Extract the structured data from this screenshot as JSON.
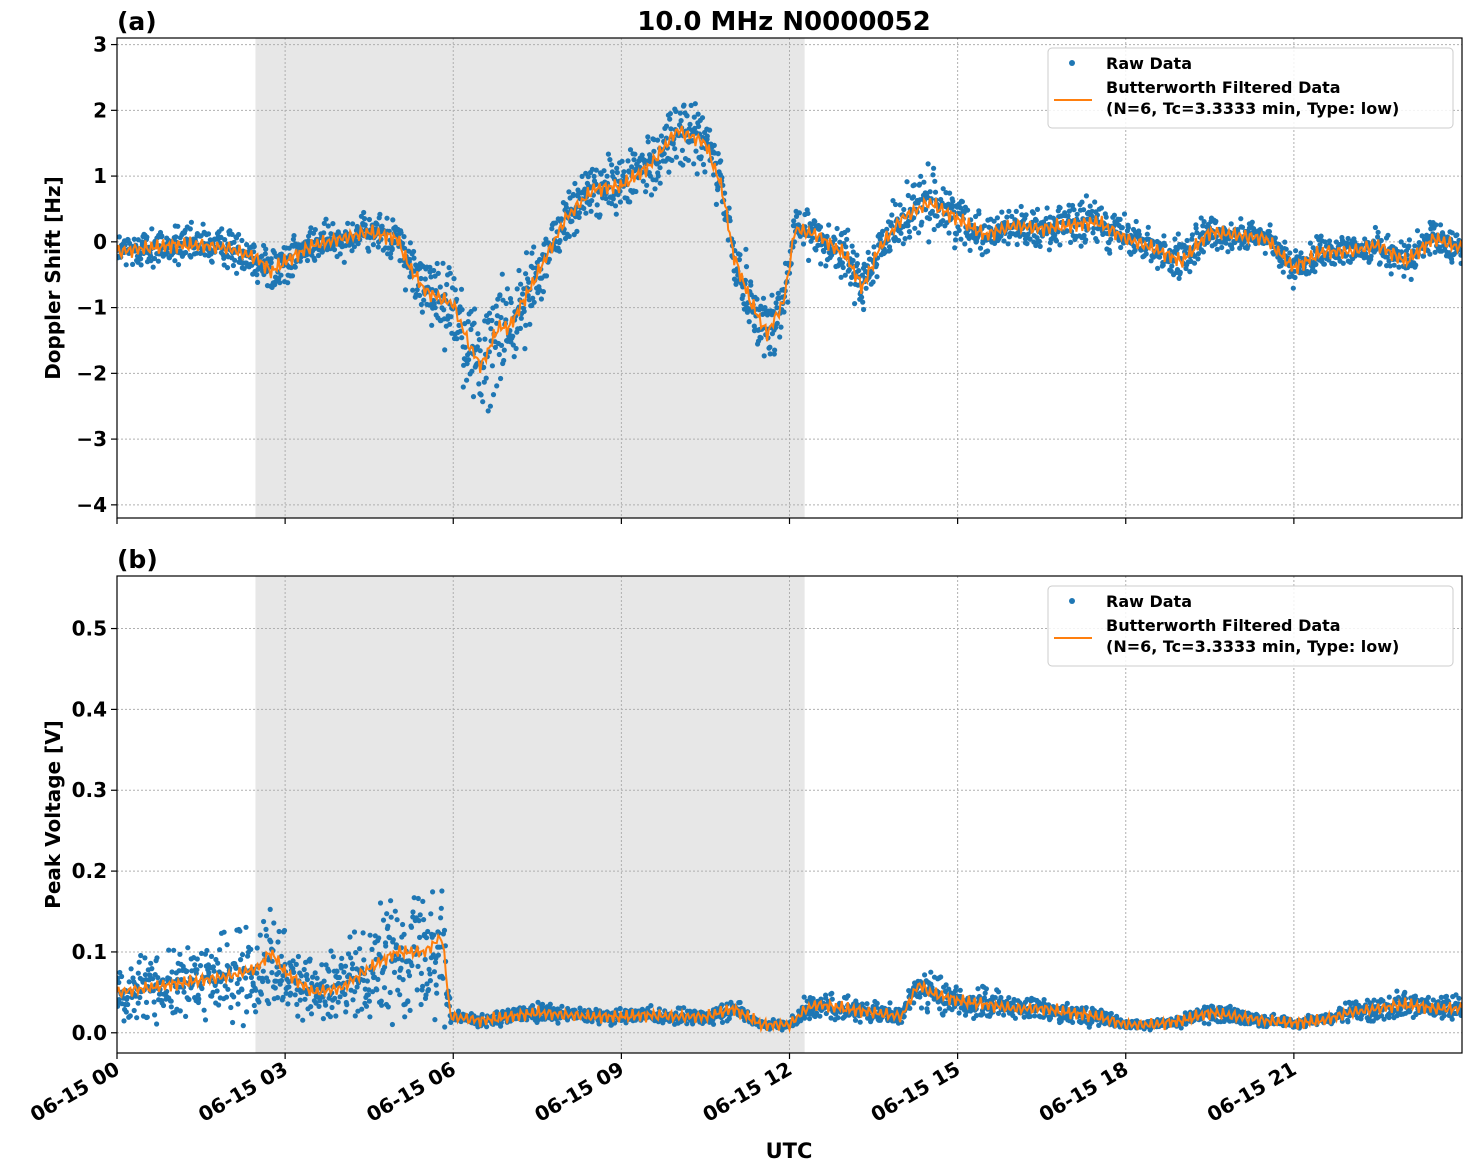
{
  "figure": {
    "title": "10.0 MHz N0000052",
    "xlabel": "UTC"
  },
  "chart_data": [
    {
      "type": "scatter",
      "panel_label": "(a)",
      "title": "10.0 MHz N0000052",
      "xlabel": "",
      "ylabel": "Doppler Shift [Hz]",
      "xlim": [
        0,
        24
      ],
      "ylim": [
        -4.2,
        3.1
      ],
      "yticks": [
        {
          "value": -4,
          "label": "−4"
        },
        {
          "value": -3,
          "label": "−3"
        },
        {
          "value": -2,
          "label": "−2"
        },
        {
          "value": -1,
          "label": "−1"
        },
        {
          "value": 0,
          "label": "0"
        },
        {
          "value": 1,
          "label": "1"
        },
        {
          "value": 2,
          "label": "2"
        },
        {
          "value": 3,
          "label": "3"
        }
      ],
      "grid": true,
      "legend_position": "top-right",
      "shaded_span_hours": [
        2.47,
        12.27
      ],
      "series": [
        {
          "name": "Raw Data",
          "kind": "scatter",
          "color": "#1f77b4",
          "x": [
            0,
            0.5,
            1,
            1.5,
            2,
            2.5,
            2.75,
            3,
            3.5,
            4,
            4.5,
            5,
            5.2,
            5.5,
            6,
            6.3,
            6.5,
            6.8,
            7,
            7.5,
            8,
            8.5,
            9,
            9.5,
            10,
            10.5,
            10.8,
            11,
            11.3,
            11.6,
            11.9,
            12.1,
            12.5,
            13,
            13.3,
            13.6,
            14,
            14.5,
            15,
            15.5,
            16,
            16.5,
            17,
            17.5,
            18,
            18.5,
            19,
            19.5,
            20,
            20.5,
            21,
            21.5,
            22,
            22.5,
            23,
            23.5,
            24
          ],
          "y": [
            -0.15,
            -0.1,
            -0.05,
            -0.05,
            -0.1,
            -0.25,
            -0.45,
            -0.3,
            -0.05,
            0.05,
            0.15,
            0.05,
            -0.35,
            -0.75,
            -0.95,
            -1.6,
            -1.9,
            -1.3,
            -1.3,
            -0.5,
            0.35,
            0.8,
            0.85,
            1.15,
            1.7,
            1.5,
            0.8,
            -0.2,
            -0.9,
            -1.4,
            -0.9,
            0.2,
            0.1,
            -0.2,
            -0.7,
            -0.1,
            0.35,
            0.6,
            0.35,
            0.1,
            0.25,
            0.2,
            0.25,
            0.3,
            0.05,
            -0.1,
            -0.3,
            0.15,
            0.1,
            0.05,
            -0.4,
            -0.15,
            -0.15,
            -0.05,
            -0.3,
            0.05,
            -0.1
          ],
          "spread": [
            0.3,
            0.3,
            0.3,
            0.3,
            0.3,
            0.35,
            0.45,
            0.4,
            0.3,
            0.3,
            0.3,
            0.35,
            0.45,
            0.55,
            0.7,
            0.9,
            1.0,
            0.9,
            0.75,
            0.55,
            0.45,
            0.45,
            0.45,
            0.5,
            0.55,
            0.55,
            0.5,
            0.5,
            0.55,
            0.55,
            0.5,
            0.4,
            0.35,
            0.4,
            0.45,
            0.4,
            0.45,
            0.5,
            0.4,
            0.3,
            0.3,
            0.3,
            0.35,
            0.35,
            0.3,
            0.3,
            0.35,
            0.3,
            0.25,
            0.25,
            0.3,
            0.25,
            0.25,
            0.25,
            0.3,
            0.3,
            0.25
          ]
        },
        {
          "name": "Butterworth Filtered Data\n(N=6, Tc=3.3333 min, Type: low)",
          "kind": "line",
          "color": "#ff7f0e",
          "x": [
            0,
            0.5,
            1,
            1.5,
            2,
            2.5,
            2.75,
            3,
            3.5,
            4,
            4.5,
            5,
            5.2,
            5.5,
            6,
            6.3,
            6.5,
            6.8,
            7,
            7.5,
            8,
            8.5,
            9,
            9.5,
            10,
            10.5,
            10.8,
            11,
            11.3,
            11.6,
            11.9,
            12.1,
            12.5,
            13,
            13.3,
            13.6,
            14,
            14.5,
            15,
            15.5,
            16,
            16.5,
            17,
            17.5,
            18,
            18.5,
            19,
            19.5,
            20,
            20.5,
            21,
            21.5,
            22,
            22.5,
            23,
            23.5,
            24
          ],
          "y": [
            -0.15,
            -0.1,
            -0.05,
            -0.05,
            -0.1,
            -0.25,
            -0.45,
            -0.3,
            -0.05,
            0.05,
            0.15,
            0.05,
            -0.35,
            -0.75,
            -0.95,
            -1.6,
            -1.9,
            -1.3,
            -1.3,
            -0.5,
            0.35,
            0.8,
            0.85,
            1.15,
            1.7,
            1.5,
            0.8,
            -0.2,
            -0.9,
            -1.4,
            -0.9,
            0.2,
            0.1,
            -0.2,
            -0.7,
            -0.1,
            0.35,
            0.6,
            0.35,
            0.1,
            0.25,
            0.2,
            0.25,
            0.3,
            0.05,
            -0.1,
            -0.3,
            0.15,
            0.1,
            0.05,
            -0.4,
            -0.15,
            -0.15,
            -0.05,
            -0.3,
            0.05,
            -0.1
          ]
        }
      ]
    },
    {
      "type": "scatter",
      "panel_label": "(b)",
      "title": "",
      "xlabel": "UTC",
      "ylabel": "Peak Voltage [V]",
      "xlim": [
        0,
        24
      ],
      "ylim": [
        -0.025,
        0.565
      ],
      "yticks": [
        {
          "value": 0.0,
          "label": "0.0"
        },
        {
          "value": 0.1,
          "label": "0.1"
        },
        {
          "value": 0.2,
          "label": "0.2"
        },
        {
          "value": 0.3,
          "label": "0.3"
        },
        {
          "value": 0.4,
          "label": "0.4"
        },
        {
          "value": 0.5,
          "label": "0.5"
        }
      ],
      "xticks": [
        {
          "value": 0,
          "label": "06-15 00"
        },
        {
          "value": 3,
          "label": "06-15 03"
        },
        {
          "value": 6,
          "label": "06-15 06"
        },
        {
          "value": 9,
          "label": "06-15 09"
        },
        {
          "value": 12,
          "label": "06-15 12"
        },
        {
          "value": 15,
          "label": "06-15 15"
        },
        {
          "value": 18,
          "label": "06-15 18"
        },
        {
          "value": 21,
          "label": "06-15 21"
        }
      ],
      "grid": true,
      "legend_position": "top-right",
      "shaded_span_hours": [
        2.47,
        12.27
      ],
      "series": [
        {
          "name": "Raw Data",
          "kind": "scatter",
          "color": "#1f77b4",
          "x": [
            0,
            0.5,
            1,
            1.5,
            2,
            2.5,
            2.75,
            3,
            3.5,
            4,
            4.5,
            5,
            5.2,
            5.5,
            5.8,
            5.95,
            6,
            6.5,
            7,
            7.5,
            8,
            8.5,
            9,
            9.5,
            10,
            10.5,
            11,
            11.5,
            12,
            12.3,
            12.5,
            13,
            13.5,
            14,
            14.3,
            14.5,
            15,
            15.5,
            16,
            16.5,
            17,
            17.5,
            18,
            18.5,
            19,
            19.5,
            20,
            20.5,
            21,
            21.5,
            22,
            22.5,
            23,
            23.5,
            24
          ],
          "y": [
            0.05,
            0.055,
            0.06,
            0.065,
            0.07,
            0.08,
            0.1,
            0.075,
            0.05,
            0.055,
            0.08,
            0.1,
            0.1,
            0.1,
            0.12,
            0.02,
            0.02,
            0.015,
            0.02,
            0.025,
            0.022,
            0.02,
            0.02,
            0.022,
            0.02,
            0.02,
            0.03,
            0.01,
            0.01,
            0.03,
            0.035,
            0.03,
            0.025,
            0.02,
            0.06,
            0.05,
            0.04,
            0.035,
            0.03,
            0.03,
            0.025,
            0.02,
            0.01,
            0.01,
            0.015,
            0.025,
            0.02,
            0.015,
            0.012,
            0.015,
            0.025,
            0.03,
            0.035,
            0.03,
            0.03
          ],
          "spread": [
            0.04,
            0.04,
            0.045,
            0.045,
            0.05,
            0.06,
            0.065,
            0.05,
            0.04,
            0.045,
            0.06,
            0.08,
            0.08,
            0.08,
            0.1,
            0.01,
            0.01,
            0.008,
            0.01,
            0.012,
            0.01,
            0.01,
            0.01,
            0.01,
            0.01,
            0.01,
            0.015,
            0.006,
            0.006,
            0.015,
            0.018,
            0.015,
            0.013,
            0.012,
            0.025,
            0.025,
            0.02,
            0.02,
            0.015,
            0.015,
            0.013,
            0.012,
            0.006,
            0.006,
            0.008,
            0.012,
            0.01,
            0.008,
            0.007,
            0.008,
            0.012,
            0.015,
            0.018,
            0.015,
            0.015
          ]
        },
        {
          "name": "Butterworth Filtered Data\n(N=6, Tc=3.3333 min, Type: low)",
          "kind": "line",
          "color": "#ff7f0e",
          "x": [
            0,
            0.5,
            1,
            1.5,
            2,
            2.5,
            2.75,
            3,
            3.5,
            4,
            4.5,
            5,
            5.2,
            5.5,
            5.8,
            5.95,
            6,
            6.5,
            7,
            7.5,
            8,
            8.5,
            9,
            9.5,
            10,
            10.5,
            11,
            11.5,
            12,
            12.3,
            12.5,
            13,
            13.5,
            14,
            14.3,
            14.5,
            15,
            15.5,
            16,
            16.5,
            17,
            17.5,
            18,
            18.5,
            19,
            19.5,
            20,
            20.5,
            21,
            21.5,
            22,
            22.5,
            23,
            23.5,
            24
          ],
          "y": [
            0.05,
            0.055,
            0.06,
            0.065,
            0.07,
            0.08,
            0.1,
            0.075,
            0.05,
            0.055,
            0.08,
            0.1,
            0.1,
            0.1,
            0.12,
            0.02,
            0.02,
            0.015,
            0.02,
            0.025,
            0.022,
            0.02,
            0.02,
            0.022,
            0.02,
            0.02,
            0.03,
            0.01,
            0.01,
            0.03,
            0.035,
            0.03,
            0.025,
            0.02,
            0.06,
            0.05,
            0.04,
            0.035,
            0.03,
            0.03,
            0.025,
            0.02,
            0.01,
            0.01,
            0.015,
            0.025,
            0.02,
            0.015,
            0.012,
            0.015,
            0.025,
            0.03,
            0.035,
            0.03,
            0.03
          ]
        }
      ]
    }
  ]
}
